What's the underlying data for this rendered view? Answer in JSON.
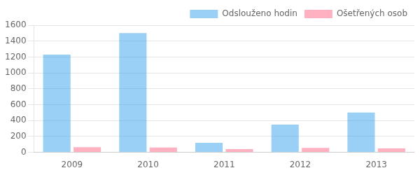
{
  "chart_data": {
    "type": "bar",
    "categories": [
      "2009",
      "2010",
      "2011",
      "2012",
      "2013"
    ],
    "series": [
      {
        "name": "Odslouženo hodin",
        "values": [
          1230,
          1500,
          120,
          350,
          500
        ]
      },
      {
        "name": "Ošetřených osob",
        "values": [
          65,
          60,
          40,
          55,
          50
        ]
      }
    ],
    "ylim": [
      0,
      1600
    ],
    "yticks": [
      0,
      200,
      400,
      600,
      800,
      1000,
      1200,
      1400,
      1600
    ],
    "grid": true,
    "legend": "upper right"
  }
}
